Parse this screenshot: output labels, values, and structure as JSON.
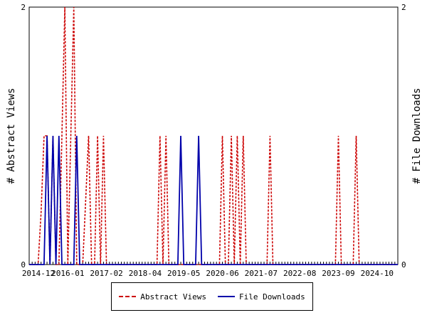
{
  "chart_data": {
    "type": "line",
    "title": "",
    "ylabel_left": "# Abstract Views",
    "ylabel_right": "# File Downloads",
    "ylim": [
      0,
      2
    ],
    "y_ticks": [
      "0",
      "2"
    ],
    "x_tick_labels": [
      "2014-12",
      "2016-01",
      "2017-02",
      "2018-04",
      "2019-05",
      "2020-06",
      "2021-07",
      "2022-08",
      "2023-09",
      "2024-10"
    ],
    "x_range_months": [
      0,
      124
    ],
    "legend_position": "bottom",
    "series": [
      {
        "name": "Abstract Views",
        "color": "#cc0000",
        "style": "dashed",
        "axis": "left",
        "points": [
          [
            0,
            0
          ],
          [
            3,
            0
          ],
          [
            4,
            0.4
          ],
          [
            5,
            1
          ],
          [
            6,
            1
          ],
          [
            7,
            0
          ],
          [
            8,
            1
          ],
          [
            9,
            0
          ],
          [
            10,
            0
          ],
          [
            11,
            1
          ],
          [
            12,
            2
          ],
          [
            13,
            0
          ],
          [
            14,
            1
          ],
          [
            15,
            2
          ],
          [
            16,
            0
          ],
          [
            17,
            0
          ],
          [
            18,
            0
          ],
          [
            19,
            0.5
          ],
          [
            20,
            1
          ],
          [
            21,
            0
          ],
          [
            22,
            0
          ],
          [
            23,
            1
          ],
          [
            24,
            0
          ],
          [
            25,
            1
          ],
          [
            26,
            0
          ],
          [
            27,
            0
          ],
          [
            28,
            0
          ],
          [
            43,
            0
          ],
          [
            44,
            1
          ],
          [
            45,
            0
          ],
          [
            46,
            1
          ],
          [
            47,
            0
          ],
          [
            48,
            0
          ],
          [
            49,
            0
          ],
          [
            50,
            0
          ],
          [
            64,
            0
          ],
          [
            65,
            1
          ],
          [
            66,
            0
          ],
          [
            67,
            0
          ],
          [
            68,
            1
          ],
          [
            69,
            0
          ],
          [
            70,
            1
          ],
          [
            71,
            0
          ],
          [
            72,
            1
          ],
          [
            73,
            0
          ],
          [
            74,
            0
          ],
          [
            75,
            0
          ],
          [
            80,
            0
          ],
          [
            81,
            1
          ],
          [
            82,
            0
          ],
          [
            83,
            0
          ],
          [
            84,
            0
          ],
          [
            103,
            0
          ],
          [
            104,
            1
          ],
          [
            105,
            0
          ],
          [
            106,
            0
          ],
          [
            109,
            0
          ],
          [
            110,
            1
          ],
          [
            111,
            0
          ],
          [
            112,
            0
          ],
          [
            124,
            0
          ]
        ]
      },
      {
        "name": "File Downloads",
        "color": "#0000aa",
        "style": "solid",
        "axis": "right",
        "points": [
          [
            0,
            0
          ],
          [
            5,
            0
          ],
          [
            6,
            1
          ],
          [
            7,
            0
          ],
          [
            8,
            1
          ],
          [
            9,
            0
          ],
          [
            10,
            1
          ],
          [
            11,
            0
          ],
          [
            15,
            0
          ],
          [
            16,
            1
          ],
          [
            17,
            0
          ],
          [
            18,
            0
          ],
          [
            19,
            0
          ],
          [
            50,
            0
          ],
          [
            51,
            1
          ],
          [
            52,
            0
          ],
          [
            53,
            0
          ],
          [
            56,
            0
          ],
          [
            57,
            1
          ],
          [
            58,
            0
          ],
          [
            59,
            0
          ],
          [
            124,
            0
          ]
        ]
      }
    ]
  }
}
